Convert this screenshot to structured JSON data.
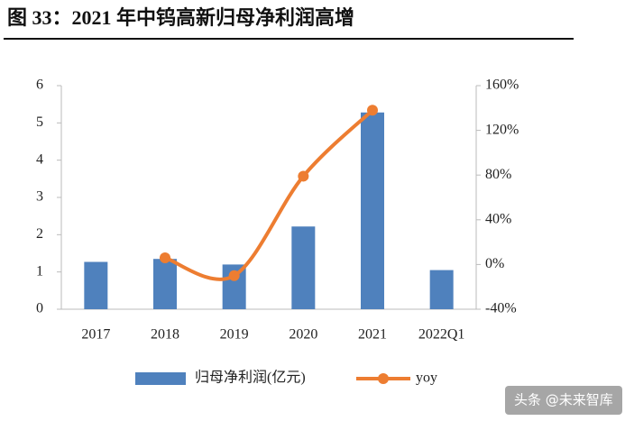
{
  "chart_data": {
    "type": "bar-line",
    "title": "图 33：2021 年中钨高新归母净利润高增",
    "categories": [
      "2017",
      "2018",
      "2019",
      "2020",
      "2021",
      "2022Q1"
    ],
    "series": [
      {
        "name": "归母净利润(亿元)",
        "type": "bar",
        "color": "#4f81bd",
        "values": [
          1.27,
          1.35,
          1.2,
          2.22,
          5.28,
          1.05
        ]
      },
      {
        "name": "yoy",
        "type": "line",
        "axis": "y2",
        "color": "#ed7d31",
        "values": [
          null,
          6,
          -10,
          79,
          138,
          null
        ]
      }
    ],
    "ylim": [
      0,
      6
    ],
    "yticks": [
      0,
      1,
      2,
      3,
      4,
      5,
      6
    ],
    "y2lim": [
      -40,
      160
    ],
    "y2ticks": [
      {
        "value": -40,
        "label": "-40%"
      },
      {
        "value": 0,
        "label": "0%"
      },
      {
        "value": 40,
        "label": "40%"
      },
      {
        "value": 80,
        "label": "80%"
      },
      {
        "value": 120,
        "label": "120%"
      },
      {
        "value": 160,
        "label": "160%"
      }
    ],
    "legend": "bottom",
    "watermark": "头条 @未来智库"
  }
}
